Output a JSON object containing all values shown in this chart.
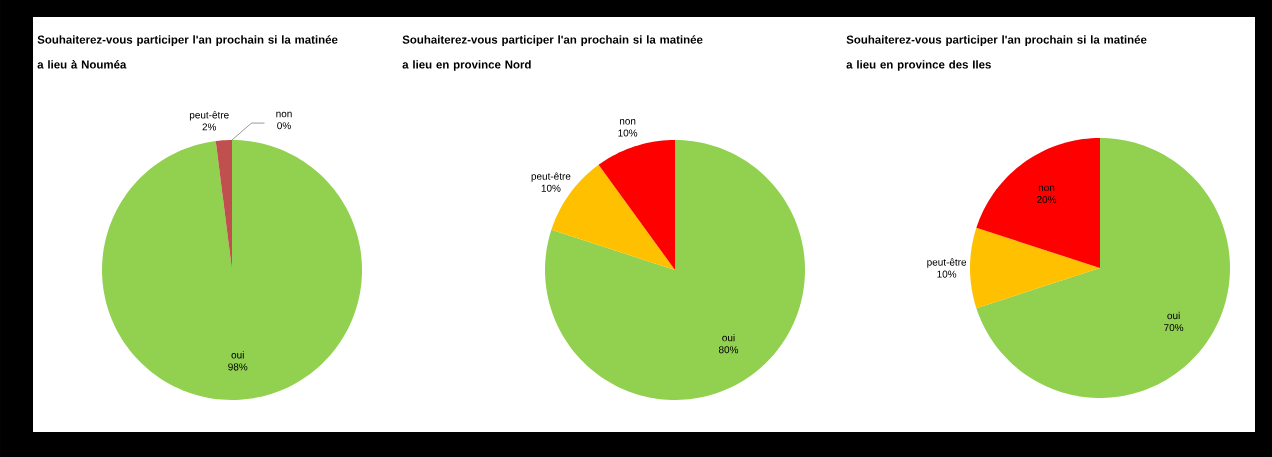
{
  "chart_data": [
    {
      "type": "pie",
      "title": "Souhaiterez-vous participer l'an prochain si la matinée a lieu à Nouméa",
      "categories": [
        "oui",
        "peut-être",
        "non"
      ],
      "values": [
        98,
        2,
        0
      ],
      "value_labels": [
        "98%",
        "2%",
        "0%"
      ],
      "colors": [
        "#92d050",
        "#c0504d",
        "#ff0000"
      ]
    },
    {
      "type": "pie",
      "title": "Souhaiterez-vous participer l'an prochain si la matinée a lieu en province Nord",
      "categories": [
        "oui",
        "peut-être",
        "non"
      ],
      "values": [
        80,
        10,
        10
      ],
      "value_labels": [
        "80%",
        "10%",
        "10%"
      ],
      "colors": [
        "#92d050",
        "#ffc000",
        "#ff0000"
      ]
    },
    {
      "type": "pie",
      "title": "Souhaiterez-vous participer l'an prochain si la matinée a lieu en province des Iles",
      "categories": [
        "oui",
        "peut-être",
        "non"
      ],
      "values": [
        70,
        10,
        20
      ],
      "value_labels": [
        "70%",
        "10%",
        "20%"
      ],
      "colors": [
        "#92d050",
        "#ffc000",
        "#ff0000"
      ]
    }
  ]
}
